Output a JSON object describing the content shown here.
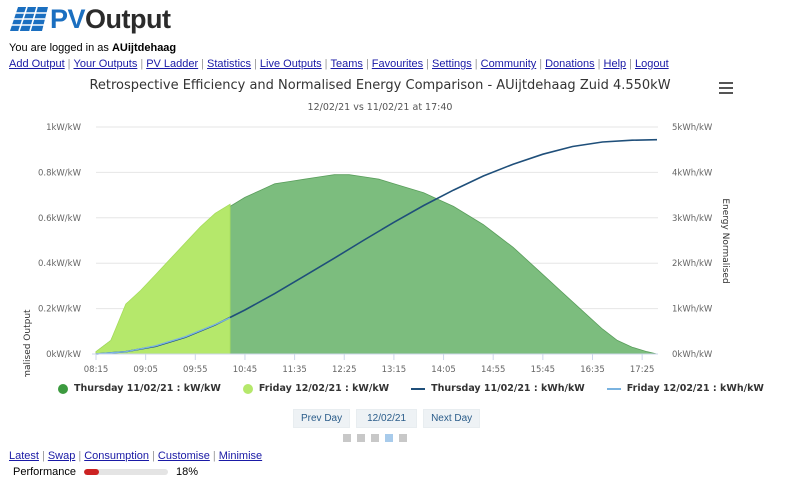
{
  "logo": {
    "pv": "PV",
    "output": "Output"
  },
  "login": {
    "prefix": "You are logged in as",
    "username": "AUijtdehaag"
  },
  "nav": [
    "Add Output",
    "Your Outputs",
    "PV Ladder",
    "Statistics",
    "Live Outputs",
    "Teams",
    "Favourites",
    "Settings",
    "Community",
    "Donations",
    "Help",
    "Logout"
  ],
  "chart_data": {
    "type": "area",
    "title": "Retrospective Efficiency and Normalised Energy Comparison - AUijtdehaag Zuid 4.550kW",
    "subtitle": "12/02/21 vs 11/02/21 at 17:40",
    "ylabel_left": "Normalised Output",
    "ylabel_right": "Energy Normalised",
    "ylim_left": [
      0,
      1
    ],
    "ylim_right": [
      0,
      5
    ],
    "yticks_left": [
      "0kW/kW",
      "0.2kW/kW",
      "0.4kW/kW",
      "0.6kW/kW",
      "0.8kW/kW",
      "1kW/kW"
    ],
    "yticks_right": [
      "0kWh/kW",
      "1kWh/kW",
      "2kWh/kW",
      "3kWh/kW",
      "4kWh/kW",
      "5kWh/kW"
    ],
    "xticks": [
      "08:15",
      "09:05",
      "09:55",
      "10:45",
      "11:35",
      "12:25",
      "13:15",
      "14:05",
      "14:55",
      "15:45",
      "16:35",
      "17:25"
    ],
    "grid": true,
    "legend_position": "bottom",
    "series": [
      {
        "name": "Thursday 11/02/21 : kW/kW",
        "axis": "left",
        "kind": "area",
        "color": "#7cbd7e",
        "x": [
          "08:15",
          "08:30",
          "08:45",
          "09:00",
          "09:15",
          "09:30",
          "09:45",
          "10:00",
          "10:15",
          "10:30",
          "10:45",
          "11:00",
          "11:15",
          "11:30",
          "11:45",
          "12:00",
          "12:15",
          "12:30",
          "12:45",
          "13:00",
          "13:15",
          "13:30",
          "13:45",
          "14:00",
          "14:15",
          "14:30",
          "14:45",
          "15:00",
          "15:15",
          "15:30",
          "15:45",
          "16:00",
          "16:15",
          "16:30",
          "16:45",
          "17:00",
          "17:15",
          "17:30",
          "17:40"
        ],
        "y": [
          0.01,
          0.06,
          0.21,
          0.27,
          0.34,
          0.41,
          0.48,
          0.55,
          0.61,
          0.65,
          0.69,
          0.72,
          0.75,
          0.76,
          0.77,
          0.78,
          0.79,
          0.79,
          0.78,
          0.77,
          0.75,
          0.73,
          0.71,
          0.68,
          0.65,
          0.61,
          0.57,
          0.52,
          0.47,
          0.41,
          0.35,
          0.29,
          0.23,
          0.17,
          0.11,
          0.06,
          0.03,
          0.01,
          0.0
        ]
      },
      {
        "name": "Friday 12/02/21 : kW/kW",
        "axis": "left",
        "kind": "area",
        "color": "#b5e86b",
        "x": [
          "08:15",
          "08:30",
          "08:45",
          "09:00",
          "09:15",
          "09:30",
          "09:45",
          "10:00",
          "10:15",
          "10:30"
        ],
        "y": [
          0.01,
          0.06,
          0.22,
          0.28,
          0.35,
          0.42,
          0.49,
          0.56,
          0.62,
          0.66
        ]
      },
      {
        "name": "Thursday 11/02/21 : kWh/kW",
        "axis": "right",
        "kind": "line",
        "color": "#1f4f7a",
        "x": [
          "08:15",
          "08:45",
          "09:15",
          "09:45",
          "10:15",
          "10:45",
          "11:15",
          "11:45",
          "12:15",
          "12:45",
          "13:15",
          "13:45",
          "14:15",
          "14:45",
          "15:15",
          "15:45",
          "16:15",
          "16:45",
          "17:15",
          "17:40"
        ],
        "y": [
          0.0,
          0.05,
          0.17,
          0.37,
          0.64,
          0.97,
          1.33,
          1.72,
          2.11,
          2.51,
          2.9,
          3.27,
          3.61,
          3.92,
          4.18,
          4.4,
          4.57,
          4.67,
          4.71,
          4.72
        ]
      },
      {
        "name": "Friday 12/02/21 : kWh/kW",
        "axis": "right",
        "kind": "line",
        "color": "#7ab3e0",
        "x": [
          "08:15",
          "08:45",
          "09:15",
          "09:45",
          "10:15",
          "10:30"
        ],
        "y": [
          0.0,
          0.05,
          0.18,
          0.38,
          0.65,
          0.8
        ]
      }
    ]
  },
  "day_nav": {
    "prev": "Prev Day",
    "date": "12/02/21",
    "next": "Next Day"
  },
  "pager": {
    "count": 5,
    "active": 4
  },
  "bottom_links": [
    "Latest",
    "Swap",
    "Consumption",
    "Customise",
    "Minimise"
  ],
  "performance": {
    "label": "Performance",
    "percent": 18,
    "value_label": "18%"
  }
}
